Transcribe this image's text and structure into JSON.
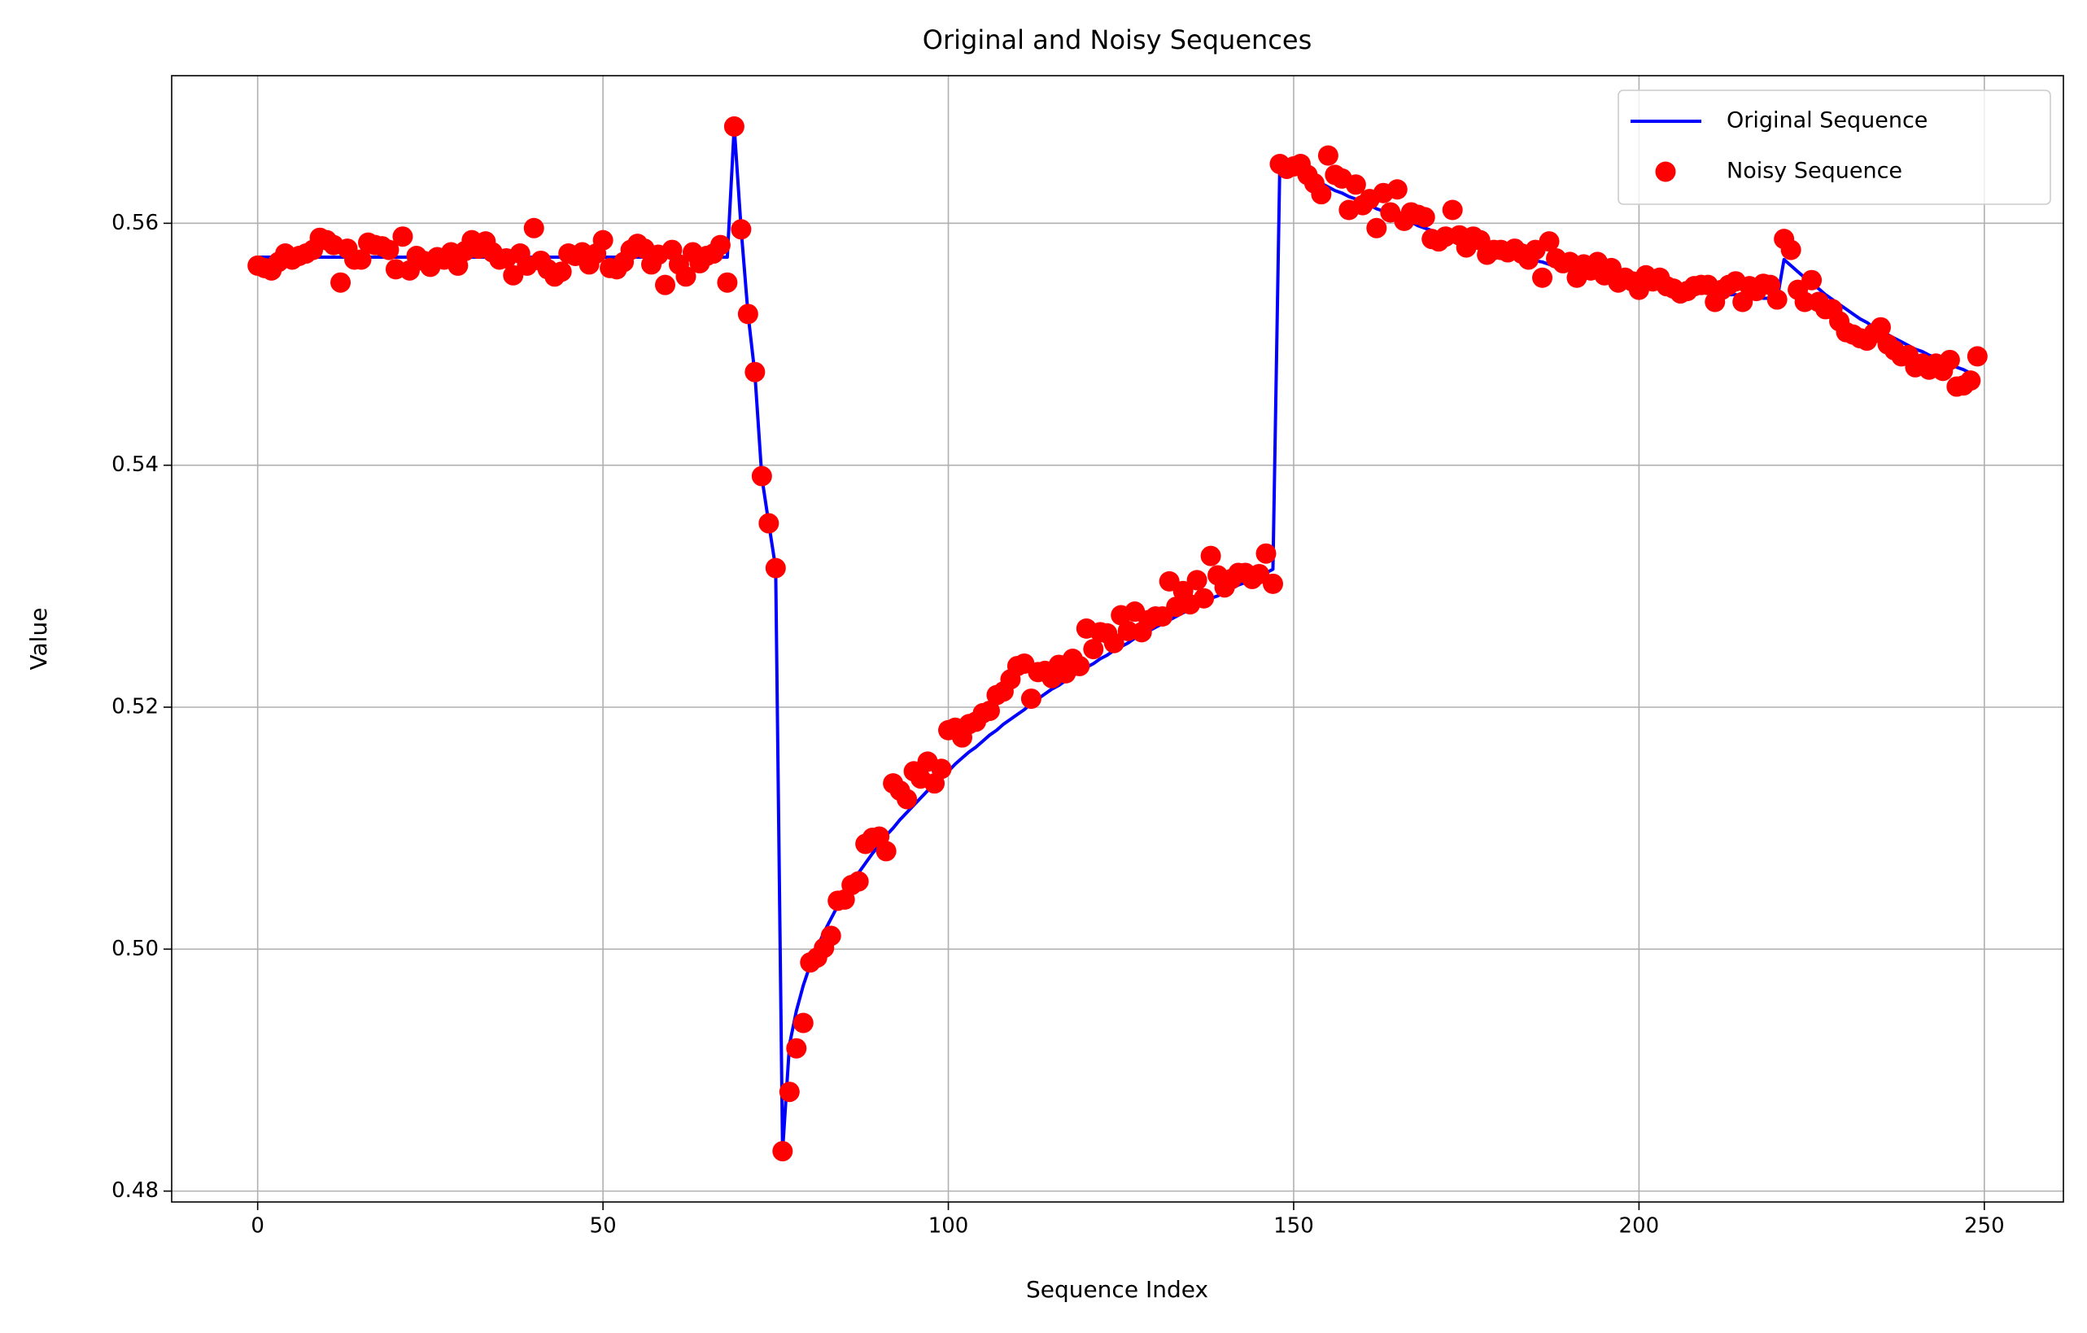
{
  "chart_data": {
    "type": "line",
    "title": "Original and Noisy Sequences",
    "x_label": "Sequence Index",
    "y_label": "Value",
    "xlim": [
      -12.45,
      261.45
    ],
    "ylim": [
      0.4791,
      0.5722
    ],
    "xticks": [
      0,
      50,
      100,
      150,
      200,
      250
    ],
    "yticks": [
      0.48,
      {
        "value": 0.5,
        "label": "0.50"
      },
      0.52,
      0.54,
      0.56
    ],
    "grid": true,
    "legend": "upper right",
    "x": [
      0,
      1,
      2,
      3,
      4,
      5,
      6,
      7,
      8,
      9,
      10,
      11,
      12,
      13,
      14,
      15,
      16,
      17,
      18,
      19,
      20,
      21,
      22,
      23,
      24,
      25,
      26,
      27,
      28,
      29,
      30,
      31,
      32,
      33,
      34,
      35,
      36,
      37,
      38,
      39,
      40,
      41,
      42,
      43,
      44,
      45,
      46,
      47,
      48,
      49,
      50,
      51,
      52,
      53,
      54,
      55,
      56,
      57,
      58,
      59,
      60,
      61,
      62,
      63,
      64,
      65,
      66,
      67,
      68,
      69,
      70,
      71,
      72,
      73,
      74,
      75,
      76,
      77,
      78,
      79,
      80,
      81,
      82,
      83,
      84,
      85,
      86,
      87,
      88,
      89,
      90,
      91,
      92,
      93,
      94,
      95,
      96,
      97,
      98,
      99,
      100,
      101,
      102,
      103,
      104,
      105,
      106,
      107,
      108,
      109,
      110,
      111,
      112,
      113,
      114,
      115,
      116,
      117,
      118,
      119,
      120,
      121,
      122,
      123,
      124,
      125,
      126,
      127,
      128,
      129,
      130,
      131,
      132,
      133,
      134,
      135,
      136,
      137,
      138,
      139,
      140,
      141,
      142,
      143,
      144,
      145,
      146,
      147,
      148,
      149,
      150,
      151,
      152,
      153,
      154,
      155,
      156,
      157,
      158,
      159,
      160,
      161,
      162,
      163,
      164,
      165,
      166,
      167,
      168,
      169,
      170,
      171,
      172,
      173,
      174,
      175,
      176,
      177,
      178,
      179,
      180,
      181,
      182,
      183,
      184,
      185,
      186,
      187,
      188,
      189,
      190,
      191,
      192,
      193,
      194,
      195,
      196,
      197,
      198,
      199,
      200,
      201,
      202,
      203,
      204,
      205,
      206,
      207,
      208,
      209,
      210,
      211,
      212,
      213,
      214,
      215,
      216,
      217,
      218,
      219,
      220,
      221,
      222,
      223,
      224,
      225,
      226,
      227,
      228,
      229,
      230,
      231,
      232,
      233,
      234,
      235,
      236,
      237,
      238,
      239,
      240,
      241,
      242,
      243,
      244,
      245,
      246,
      247,
      248,
      249
    ],
    "series": [
      {
        "name": "Original Sequence",
        "type": "line",
        "color": "#0000ff",
        "values": [
          0.5572,
          0.5572,
          0.5572,
          0.5572,
          0.5572,
          0.5572,
          0.5572,
          0.5572,
          0.5572,
          0.5572,
          0.5572,
          0.5572,
          0.5572,
          0.5572,
          0.5572,
          0.5572,
          0.5572,
          0.5572,
          0.5572,
          0.5572,
          0.5572,
          0.5572,
          0.5572,
          0.5572,
          0.5572,
          0.5572,
          0.5572,
          0.5572,
          0.5572,
          0.5572,
          0.5572,
          0.5572,
          0.5572,
          0.5572,
          0.5572,
          0.5572,
          0.5572,
          0.5572,
          0.5572,
          0.5572,
          0.5572,
          0.5572,
          0.5572,
          0.5572,
          0.5572,
          0.5572,
          0.5572,
          0.5572,
          0.5572,
          0.5572,
          0.5572,
          0.5572,
          0.5572,
          0.5572,
          0.5572,
          0.5572,
          0.5572,
          0.5572,
          0.5572,
          0.5572,
          0.5572,
          0.5572,
          0.5572,
          0.5572,
          0.5572,
          0.5572,
          0.5572,
          0.5572,
          0.5572,
          0.568,
          0.5595,
          0.5525,
          0.5475,
          0.539,
          0.5352,
          0.5315,
          0.4833,
          0.4921,
          0.4949,
          0.497,
          0.4987,
          0.5001,
          0.5014,
          0.5025,
          0.5036,
          0.5045,
          0.5055,
          0.5063,
          0.5071,
          0.5079,
          0.5086,
          0.5094,
          0.51,
          0.5107,
          0.5113,
          0.5119,
          0.5125,
          0.5131,
          0.5137,
          0.5142,
          0.5147,
          0.5153,
          0.5158,
          0.5163,
          0.5167,
          0.5172,
          0.5177,
          0.5181,
          0.5186,
          0.519,
          0.5194,
          0.5198,
          0.5203,
          0.5207,
          0.5211,
          0.5215,
          0.5218,
          0.5222,
          0.5226,
          0.5229,
          0.5233,
          0.5236,
          0.524,
          0.5243,
          0.5247,
          0.525,
          0.5253,
          0.5257,
          0.526,
          0.5263,
          0.5266,
          0.5269,
          0.5272,
          0.5275,
          0.5278,
          0.5281,
          0.5284,
          0.5287,
          0.529,
          0.5292,
          0.5295,
          0.5298,
          0.5301,
          0.5303,
          0.5306,
          0.5309,
          0.5311,
          0.5314,
          0.565,
          0.5647,
          0.5644,
          0.5641,
          0.5638,
          0.5636,
          0.5633,
          0.563,
          0.5627,
          0.5625,
          0.5622,
          0.562,
          0.5617,
          0.5615,
          0.5612,
          0.561,
          0.5607,
          0.5605,
          0.5603,
          0.5601,
          0.5598,
          0.5596,
          0.5594,
          0.5592,
          0.559,
          0.5589,
          0.5587,
          0.5585,
          0.5583,
          0.5582,
          0.558,
          0.5579,
          0.5577,
          0.5575,
          0.5574,
          0.5572,
          0.5571,
          0.5569,
          0.5568,
          0.5566,
          0.5565,
          0.5563,
          0.5562,
          0.5561,
          0.556,
          0.5558,
          0.5557,
          0.5556,
          0.5555,
          0.5554,
          0.5553,
          0.5552,
          0.5551,
          0.555,
          0.5549,
          0.5549,
          0.5548,
          0.5547,
          0.5546,
          0.5545,
          0.5545,
          0.5544,
          0.5543,
          0.5542,
          0.5542,
          0.5541,
          0.5541,
          0.554,
          0.5539,
          0.5539,
          0.5538,
          0.5538,
          0.5537,
          0.557,
          0.5565,
          0.556,
          0.5555,
          0.555,
          0.5546,
          0.5541,
          0.5537,
          0.5533,
          0.5529,
          0.5525,
          0.5521,
          0.5518,
          0.5514,
          0.5511,
          0.5508,
          0.5505,
          0.5502,
          0.5499,
          0.5496,
          0.5494,
          0.5491,
          0.5489,
          0.5486,
          0.5484,
          0.5481,
          0.5479,
          0.5476,
          0.5474
        ]
      },
      {
        "name": "Noisy Sequence",
        "type": "scatter",
        "color": "#ff0000",
        "values": [
          0.5565,
          0.5563,
          0.5561,
          0.5568,
          0.5575,
          0.557,
          0.5573,
          0.5575,
          0.5578,
          0.5588,
          0.5586,
          0.5582,
          0.5551,
          0.5579,
          0.557,
          0.557,
          0.5584,
          0.5582,
          0.5581,
          0.5578,
          0.5562,
          0.5589,
          0.5561,
          0.5573,
          0.5569,
          0.5564,
          0.5572,
          0.557,
          0.5576,
          0.5565,
          0.5577,
          0.5586,
          0.5579,
          0.5585,
          0.5576,
          0.557,
          0.5571,
          0.5557,
          0.5575,
          0.5565,
          0.5596,
          0.5569,
          0.5562,
          0.5556,
          0.556,
          0.5575,
          0.5573,
          0.5576,
          0.5566,
          0.5575,
          0.5586,
          0.5563,
          0.5562,
          0.5568,
          0.5578,
          0.5583,
          0.5579,
          0.5566,
          0.5574,
          0.5549,
          0.5578,
          0.5566,
          0.5556,
          0.5576,
          0.5567,
          0.5573,
          0.5575,
          0.5582,
          0.5551,
          0.568,
          0.5595,
          0.5525,
          0.5477,
          0.5391,
          0.5352,
          0.5315,
          0.4833,
          0.4882,
          0.4918,
          0.4939,
          0.4989,
          0.4993,
          0.5001,
          0.5011,
          0.504,
          0.5041,
          0.5053,
          0.5056,
          0.5087,
          0.5092,
          0.5093,
          0.5081,
          0.5137,
          0.5131,
          0.5124,
          0.5147,
          0.5141,
          0.5155,
          0.5137,
          0.5149,
          0.5181,
          0.5183,
          0.5175,
          0.5186,
          0.5188,
          0.5195,
          0.5197,
          0.521,
          0.5213,
          0.5223,
          0.5234,
          0.5236,
          0.5207,
          0.5229,
          0.523,
          0.5224,
          0.5235,
          0.5228,
          0.524,
          0.5234,
          0.5265,
          0.5248,
          0.5262,
          0.5261,
          0.5253,
          0.5276,
          0.5263,
          0.5279,
          0.5262,
          0.5272,
          0.5275,
          0.5275,
          0.5304,
          0.5283,
          0.5296,
          0.5285,
          0.5305,
          0.529,
          0.5325,
          0.5309,
          0.5299,
          0.5306,
          0.5311,
          0.5311,
          0.5306,
          0.531,
          0.5327,
          0.5302,
          0.5649,
          0.5645,
          0.5647,
          0.5649,
          0.564,
          0.5633,
          0.5624,
          0.5656,
          0.564,
          0.5637,
          0.5611,
          0.5632,
          0.5615,
          0.562,
          0.5596,
          0.5625,
          0.5609,
          0.5628,
          0.5602,
          0.5609,
          0.5607,
          0.5605,
          0.5587,
          0.5585,
          0.5589,
          0.5611,
          0.559,
          0.558,
          0.5589,
          0.5586,
          0.5574,
          0.5578,
          0.5578,
          0.5576,
          0.5579,
          0.5575,
          0.557,
          0.5578,
          0.5555,
          0.5585,
          0.5571,
          0.5567,
          0.5568,
          0.5555,
          0.5566,
          0.5561,
          0.5568,
          0.5557,
          0.5563,
          0.5551,
          0.5555,
          0.5552,
          0.5545,
          0.5557,
          0.5552,
          0.5555,
          0.5548,
          0.5546,
          0.5542,
          0.5544,
          0.5548,
          0.5549,
          0.5549,
          0.5535,
          0.5545,
          0.5549,
          0.5552,
          0.5535,
          0.5548,
          0.5544,
          0.555,
          0.5549,
          0.5537,
          0.5587,
          0.5578,
          0.5545,
          0.5535,
          0.5553,
          0.5535,
          0.5529,
          0.5529,
          0.5519,
          0.551,
          0.5508,
          0.5505,
          0.5503,
          0.5509,
          0.5514,
          0.55,
          0.5495,
          0.549,
          0.5491,
          0.5481,
          0.5484,
          0.5479,
          0.5484,
          0.5478,
          0.5487,
          0.5465,
          0.5466,
          0.547,
          0.549
        ]
      }
    ]
  }
}
